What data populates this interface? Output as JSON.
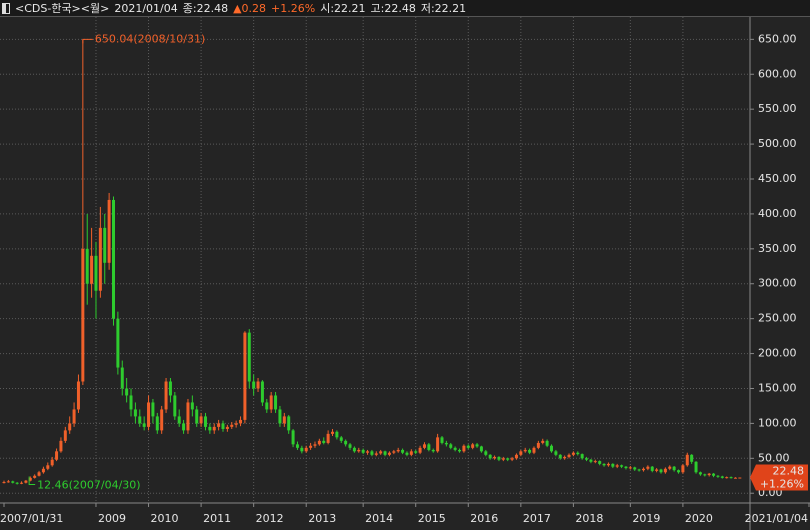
{
  "chart_data": {
    "type": "candlestick",
    "header": {
      "title": "<CDS-한국><월>",
      "date": "2021/01/04",
      "close_label": "종:22.48",
      "change": "▲0.28",
      "change_pct": "+1.26%",
      "open_label": "시:22.21",
      "high_label": "고:22.48",
      "low_label": "저:22.21"
    },
    "price_tag": [
      "22.48",
      "+1.26%"
    ],
    "annotations": {
      "high": "650.04(2008/10/31)",
      "low": "12.46(2007/04/30)"
    },
    "up_color": "#f0602a",
    "down_color": "#2ecc2e",
    "grid": true,
    "ylim": [
      -14,
      682
    ],
    "yticks": [
      {
        "value": 0,
        "label": "0.00"
      },
      {
        "value": 50,
        "label": "50.00"
      },
      {
        "value": 100,
        "label": "100.00"
      },
      {
        "value": 150,
        "label": "150.00"
      },
      {
        "value": 200,
        "label": "200.00"
      },
      {
        "value": 250,
        "label": "250.00"
      },
      {
        "value": 300,
        "label": "300.00"
      },
      {
        "value": 350,
        "label": "350.00"
      },
      {
        "value": 400,
        "label": "400.00"
      },
      {
        "value": 450,
        "label": "450.00"
      },
      {
        "value": 500,
        "label": "500.00"
      },
      {
        "value": 550,
        "label": "550.00"
      },
      {
        "value": 600,
        "label": "600.00"
      },
      {
        "value": 650,
        "label": "650.00"
      }
    ],
    "categories": [
      "2007/01/31",
      null,
      null,
      null,
      null,
      null,
      null,
      null,
      null,
      null,
      null,
      null,
      null,
      null,
      null,
      null,
      null,
      null,
      null,
      null,
      null,
      "2009",
      null,
      null,
      null,
      null,
      null,
      null,
      null,
      null,
      null,
      null,
      null,
      "2010",
      null,
      null,
      null,
      null,
      null,
      null,
      null,
      null,
      null,
      null,
      null,
      "2011",
      null,
      null,
      null,
      null,
      null,
      null,
      null,
      null,
      null,
      null,
      null,
      "2012",
      null,
      null,
      null,
      null,
      null,
      null,
      null,
      null,
      null,
      null,
      null,
      "2013",
      null,
      null,
      null,
      null,
      null,
      null,
      null,
      null,
      null,
      null,
      null,
      null,
      "2014",
      null,
      null,
      null,
      null,
      null,
      null,
      null,
      null,
      null,
      null,
      null,
      "2015",
      null,
      null,
      null,
      null,
      null,
      null,
      null,
      null,
      null,
      null,
      null,
      "2016",
      null,
      null,
      null,
      null,
      null,
      null,
      null,
      null,
      null,
      null,
      null,
      "2017",
      null,
      null,
      null,
      null,
      null,
      null,
      null,
      null,
      null,
      null,
      null,
      "2018",
      null,
      null,
      null,
      null,
      null,
      null,
      null,
      null,
      null,
      null,
      null,
      null,
      "2019",
      null,
      null,
      null,
      null,
      null,
      null,
      null,
      null,
      null,
      null,
      null,
      "2020",
      null,
      null,
      null,
      null,
      null,
      null,
      null,
      null,
      null,
      null,
      null,
      null,
      "2021/01/04"
    ],
    "open": [
      15,
      16,
      17,
      15,
      14,
      15,
      18,
      22,
      25,
      30,
      35,
      40,
      48,
      60,
      75,
      90,
      100,
      120,
      160,
      350,
      300,
      340,
      290,
      380,
      330,
      420,
      250,
      180,
      150,
      140,
      120,
      110,
      100,
      95,
      130,
      110,
      90,
      120,
      160,
      140,
      110,
      100,
      90,
      130,
      120,
      100,
      110,
      95,
      90,
      95,
      100,
      92,
      95,
      98,
      100,
      105,
      230,
      160,
      150,
      160,
      130,
      120,
      140,
      120,
      100,
      110,
      90,
      70,
      65,
      60,
      65,
      68,
      70,
      75,
      72,
      85,
      88,
      80,
      75,
      70,
      65,
      60,
      62,
      58,
      60,
      55,
      57,
      60,
      55,
      58,
      60,
      62,
      58,
      55,
      60,
      58,
      65,
      70,
      62,
      60,
      80,
      72,
      70,
      65,
      62,
      60,
      68,
      65,
      70,
      67,
      60,
      55,
      50,
      52,
      48,
      50,
      48,
      50,
      55,
      60,
      62,
      58,
      65,
      72,
      75,
      68,
      60,
      55,
      50,
      52,
      55,
      58,
      56,
      50,
      48,
      45,
      46,
      42,
      40,
      42,
      38,
      40,
      38,
      36,
      37,
      34,
      33,
      35,
      38,
      32,
      34,
      30,
      35,
      38,
      33,
      30,
      40,
      55,
      45,
      30,
      27,
      26,
      28,
      25,
      24,
      22,
      23,
      22,
      22.21
    ],
    "high": [
      18,
      19,
      18,
      16,
      17,
      19,
      24,
      27,
      32,
      38,
      44,
      52,
      64,
      80,
      95,
      110,
      130,
      170,
      650.04,
      400,
      380,
      360,
      410,
      400,
      430,
      425,
      260,
      190,
      165,
      150,
      130,
      120,
      110,
      140,
      135,
      115,
      125,
      165,
      165,
      145,
      120,
      105,
      135,
      140,
      125,
      115,
      115,
      100,
      100,
      105,
      104,
      98,
      102,
      104,
      110,
      232,
      235,
      170,
      165,
      162,
      135,
      145,
      145,
      125,
      115,
      112,
      92,
      74,
      68,
      68,
      72,
      74,
      78,
      80,
      90,
      92,
      90,
      82,
      77,
      72,
      67,
      65,
      64,
      62,
      62,
      60,
      62,
      61,
      60,
      62,
      65,
      64,
      60,
      63,
      62,
      68,
      73,
      72,
      64,
      85,
      82,
      75,
      72,
      67,
      64,
      70,
      70,
      72,
      72,
      68,
      62,
      56,
      54,
      53,
      52,
      51,
      52,
      57,
      62,
      65,
      64,
      67,
      75,
      78,
      77,
      70,
      62,
      56,
      54,
      57,
      60,
      60,
      57,
      52,
      49,
      48,
      47,
      43,
      44,
      43,
      42,
      41,
      39,
      39,
      38,
      35,
      37,
      40,
      39,
      36,
      35,
      37,
      40,
      39,
      34,
      42,
      58,
      56,
      46,
      31,
      28,
      29,
      29,
      26,
      25,
      24,
      24,
      23,
      22.48
    ],
    "low": [
      14,
      15,
      14,
      12.46,
      13,
      14,
      17,
      21,
      24,
      28,
      33,
      38,
      46,
      58,
      72,
      85,
      95,
      115,
      155,
      270,
      280,
      250,
      280,
      300,
      320,
      240,
      170,
      140,
      130,
      110,
      100,
      95,
      90,
      90,
      100,
      85,
      85,
      115,
      130,
      105,
      95,
      85,
      85,
      110,
      95,
      95,
      90,
      85,
      85,
      90,
      88,
      88,
      92,
      94,
      96,
      100,
      150,
      140,
      145,
      125,
      115,
      115,
      115,
      95,
      95,
      85,
      66,
      62,
      57,
      58,
      62,
      65,
      68,
      70,
      70,
      82,
      77,
      72,
      67,
      62,
      58,
      58,
      56,
      55,
      53,
      53,
      55,
      53,
      53,
      56,
      58,
      56,
      53,
      53,
      56,
      56,
      63,
      60,
      58,
      58,
      70,
      67,
      63,
      60,
      58,
      58,
      63,
      63,
      65,
      58,
      53,
      48,
      48,
      46,
      46,
      46,
      46,
      48,
      53,
      58,
      56,
      56,
      63,
      70,
      66,
      58,
      53,
      48,
      48,
      50,
      53,
      54,
      48,
      46,
      43,
      43,
      40,
      38,
      38,
      36,
      36,
      36,
      34,
      34,
      32,
      31,
      31,
      33,
      30,
      30,
      28,
      28,
      33,
      31,
      28,
      28,
      38,
      42,
      28,
      25,
      24,
      24,
      23,
      22,
      21,
      21,
      21,
      21,
      22.21
    ],
    "close": [
      16,
      17,
      15,
      14,
      15,
      18,
      22,
      25,
      30,
      35,
      40,
      48,
      60,
      75,
      90,
      100,
      120,
      160,
      350,
      300,
      340,
      290,
      380,
      330,
      420,
      250,
      180,
      150,
      140,
      120,
      110,
      100,
      95,
      130,
      110,
      90,
      120,
      160,
      140,
      110,
      100,
      90,
      130,
      120,
      100,
      110,
      95,
      90,
      95,
      100,
      92,
      95,
      98,
      100,
      105,
      230,
      160,
      150,
      160,
      130,
      120,
      140,
      120,
      100,
      110,
      90,
      70,
      65,
      60,
      65,
      68,
      70,
      75,
      72,
      85,
      88,
      80,
      75,
      70,
      65,
      60,
      62,
      58,
      60,
      55,
      57,
      60,
      55,
      58,
      60,
      62,
      58,
      55,
      60,
      58,
      65,
      70,
      62,
      60,
      80,
      72,
      70,
      65,
      62,
      60,
      68,
      65,
      70,
      67,
      60,
      55,
      50,
      52,
      48,
      50,
      48,
      50,
      55,
      60,
      62,
      58,
      65,
      72,
      75,
      68,
      60,
      55,
      50,
      52,
      55,
      58,
      56,
      50,
      48,
      45,
      46,
      42,
      40,
      42,
      38,
      40,
      38,
      36,
      37,
      34,
      33,
      35,
      38,
      32,
      34,
      30,
      35,
      38,
      33,
      30,
      40,
      55,
      45,
      30,
      27,
      26,
      28,
      25,
      24,
      22,
      23,
      22,
      22.2,
      22.48
    ]
  }
}
